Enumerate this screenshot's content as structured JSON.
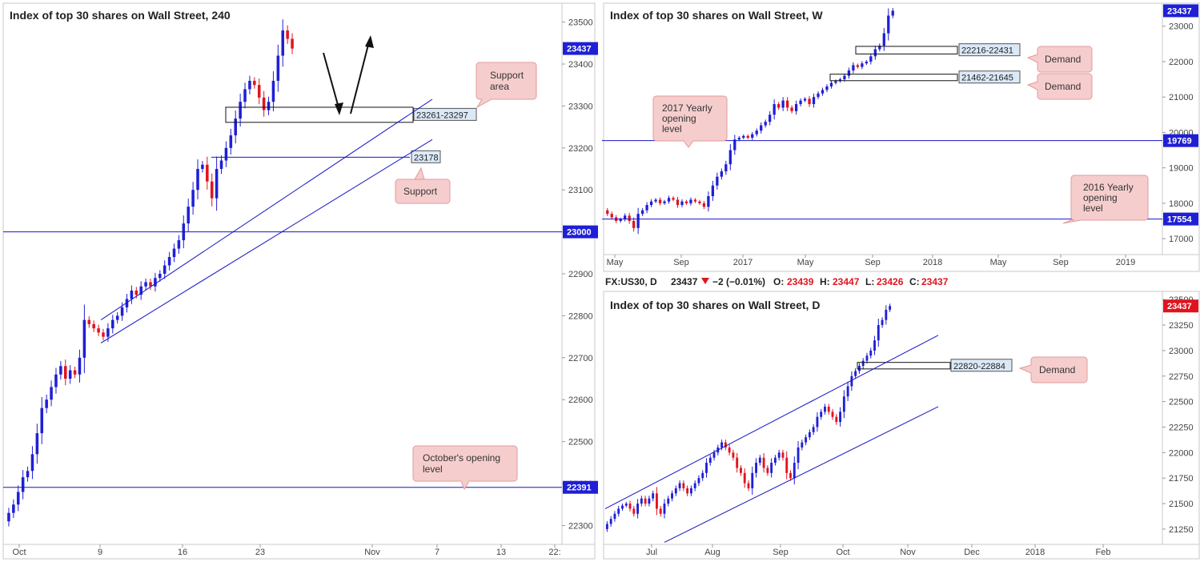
{
  "colors": {
    "bull": "#1f1fd6",
    "bear": "#e0141e",
    "line": "#1414c8",
    "callout_fill": "#f6cdcd",
    "callout_stroke": "#e29a9a",
    "price_tag": "#1f1fd6",
    "price_tag_red": "#e0141e",
    "label_box_fill": "#dbe9f7"
  },
  "infobar": {
    "symbol": "FX:US30, D",
    "last": "23437",
    "change": "−2 (−0.01%)",
    "open_label": "O:",
    "open": "23439",
    "high_label": "H:",
    "high": "23447",
    "low_label": "L:",
    "low": "23426",
    "close_label": "C:",
    "close": "23437"
  },
  "chart_data": [
    {
      "id": "h4",
      "type": "candlestick",
      "title": "Index of top 30 shares on Wall Street, 240",
      "x_ticks": [
        "Oct",
        "9",
        "16",
        "23",
        "Nov",
        "7",
        "13",
        "22:"
      ],
      "y_ticks": [
        22300,
        22400,
        22500,
        22600,
        22700,
        22800,
        22900,
        23000,
        23100,
        23200,
        23300,
        23400,
        23500
      ],
      "ylim": [
        22255,
        23545
      ],
      "last_price": "23437",
      "levels": [
        {
          "value": 23000,
          "label": "23000"
        },
        {
          "value": 22391,
          "label": "22391"
        }
      ],
      "zone": {
        "low": 23261,
        "high": 23297,
        "label": "23261-23297"
      },
      "segment_level": {
        "value": 23178,
        "label": "23178"
      },
      "closes": [
        22330,
        22350,
        22380,
        22415,
        22430,
        22470,
        22520,
        22580,
        22600,
        22630,
        22660,
        22680,
        22650,
        22670,
        22660,
        22700,
        22790,
        22780,
        22770,
        22760,
        22750,
        22770,
        22790,
        22800,
        22820,
        22840,
        22860,
        22850,
        22870,
        22880,
        22870,
        22890,
        22900,
        22920,
        22940,
        22960,
        22980,
        23020,
        23060,
        23100,
        23150,
        23160,
        23120,
        23080,
        23150,
        23170,
        23200,
        23230,
        23270,
        23310,
        23340,
        23360,
        23350,
        23320,
        23290,
        23310,
        23360,
        23420,
        23480,
        23460,
        23437
      ]
    },
    {
      "id": "weekly",
      "type": "candlestick",
      "title": "Index of top 30 shares on Wall Street, W",
      "x_ticks": [
        "May",
        "Sep",
        "2017",
        "May",
        "Sep",
        "2018",
        "May",
        "Sep",
        "2019"
      ],
      "y_ticks": [
        17000,
        18000,
        19000,
        20000,
        21000,
        22000,
        23000
      ],
      "ylim": [
        16550,
        23650
      ],
      "last_price": "23437",
      "levels": [
        {
          "value": 19769,
          "label": "19769"
        },
        {
          "value": 17554,
          "label": "17554"
        }
      ],
      "zones": [
        {
          "low": 22216,
          "high": 22431,
          "label": "22216-22431"
        },
        {
          "low": 21462,
          "label": "21462-21645",
          "high": 21645
        }
      ],
      "closes": [
        17700,
        17600,
        17500,
        17550,
        17650,
        17500,
        17300,
        17700,
        17800,
        17950,
        18050,
        18100,
        18000,
        18050,
        18150,
        18100,
        17950,
        18050,
        18000,
        18100,
        18050,
        18000,
        17900,
        18200,
        18500,
        18750,
        18900,
        19100,
        19500,
        19800,
        19850,
        19900,
        19850,
        19950,
        20050,
        20200,
        20300,
        20500,
        20800,
        20700,
        20900,
        20700,
        20600,
        20800,
        20900,
        20950,
        20800,
        21000,
        21100,
        21200,
        21300,
        21400,
        21450,
        21500,
        21600,
        21750,
        21900,
        21850,
        21950,
        22000,
        22150,
        22350,
        22450,
        22800,
        23300,
        23437
      ]
    },
    {
      "id": "daily",
      "type": "candlestick",
      "title": "Index of top 30 shares on Wall Street, D",
      "x_ticks": [
        "Jul",
        "Aug",
        "Sep",
        "Oct",
        "Nov",
        "Dec",
        "2018",
        "Feb"
      ],
      "y_ticks": [
        21250,
        21500,
        21750,
        22000,
        22250,
        22500,
        22750,
        23000,
        23250,
        23500
      ],
      "ylim": [
        21100,
        23580
      ],
      "last_price": "23437",
      "zone": {
        "low": 22820,
        "high": 22884,
        "label": "22820-22884"
      },
      "closes": [
        21300,
        21350,
        21400,
        21450,
        21480,
        21500,
        21450,
        21400,
        21500,
        21550,
        21500,
        21550,
        21600,
        21450,
        21400,
        21500,
        21550,
        21600,
        21650,
        21700,
        21650,
        21600,
        21650,
        21700,
        21750,
        21800,
        21900,
        21950,
        22000,
        22050,
        22100,
        22050,
        22000,
        21950,
        21850,
        21800,
        21700,
        21650,
        21800,
        21900,
        21950,
        21850,
        21800,
        21900,
        21950,
        22000,
        21950,
        21800,
        21750,
        21900,
        22050,
        22100,
        22150,
        22200,
        22250,
        22350,
        22400,
        22450,
        22400,
        22350,
        22300,
        22400,
        22550,
        22650,
        22750,
        22800,
        22850,
        22900,
        22950,
        23000,
        23100,
        23250,
        23300,
        23400,
        23437
      ]
    }
  ],
  "callouts": {
    "support_area": "Support\narea",
    "support": "Support",
    "october_open": "October's opening\nlevel",
    "yearly_2017": "2017 Yearly\nopening\nlevel",
    "yearly_2016": "2016 Yearly\nopening\nlevel",
    "demand_1": "Demand",
    "demand_2": "Demand",
    "demand_3": "Demand"
  }
}
